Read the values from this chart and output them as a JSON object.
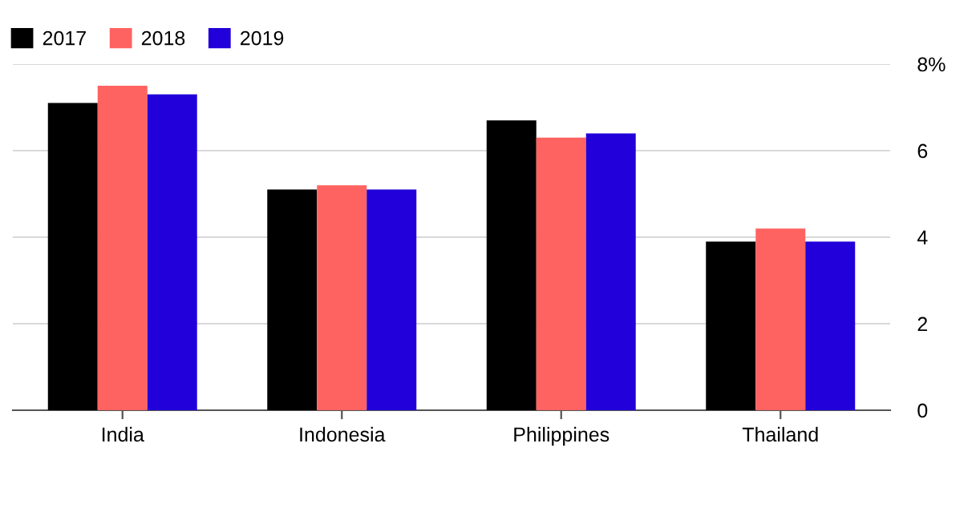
{
  "chart_data": {
    "type": "bar",
    "categories": [
      "India",
      "Indonesia",
      "Philippines",
      "Thailand"
    ],
    "series": [
      {
        "name": "2017",
        "color": "#000000",
        "values": [
          7.1,
          5.1,
          6.7,
          3.9
        ]
      },
      {
        "name": "2018",
        "color": "#ff6361",
        "values": [
          7.5,
          5.2,
          6.3,
          4.2
        ]
      },
      {
        "name": "2019",
        "color": "#2200d9",
        "values": [
          7.3,
          5.1,
          6.4,
          3.9
        ]
      }
    ],
    "ylim": [
      0,
      8
    ],
    "yticks": [
      0,
      2,
      4,
      6,
      {
        "value": 8,
        "label": "8%"
      }
    ],
    "grid": "y",
    "legend": "top left"
  }
}
